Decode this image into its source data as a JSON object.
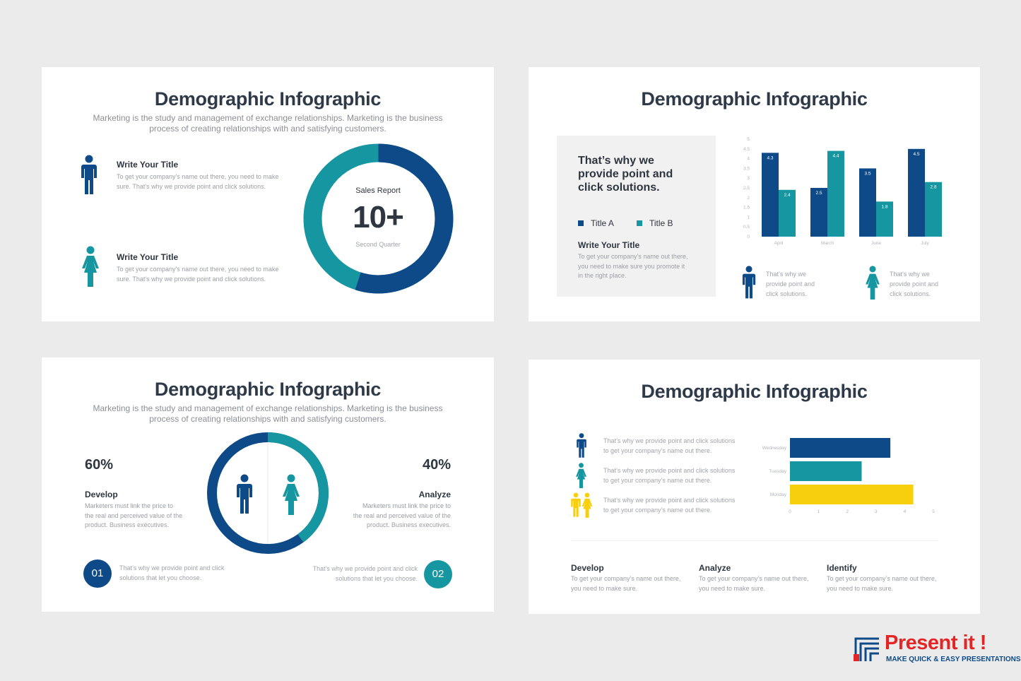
{
  "colors": {
    "navy": "#0d4a87",
    "teal": "#1696a0",
    "yellow": "#f7cf0c",
    "bg": "#ebebeb"
  },
  "slide1": {
    "title": "Demographic Infographic",
    "subtitle_line1": "Marketing is the study and management of exchange relationships. Marketing is the business",
    "subtitle_line2": "process of creating relationships with and satisfying customers.",
    "items": [
      {
        "icon": "male-icon",
        "title": "Write Your Title",
        "line1": "To get your company's name out there, you need to make",
        "line2": "sure. That's why we provide point and click solutions."
      },
      {
        "icon": "female-icon",
        "title": "Write Your Title",
        "line1": "To get your company's name out there, you need to make",
        "line2": "sure. That's why we provide point and click solutions."
      }
    ],
    "donut": {
      "label": "Sales Report",
      "value": "10+",
      "caption": "Second Quarter",
      "navy_fraction": 0.55
    }
  },
  "slide2": {
    "title": "Demographic Infographic",
    "panel_heading_l1": "That’s why we",
    "panel_heading_l2": "provide point and",
    "panel_heading_l3": "click solutions.",
    "legend": [
      "Title A",
      "Title B"
    ],
    "panel_title": "Write Your Title",
    "panel_text_l1": "To get your company’s name out there,",
    "panel_text_l2": "you need to make sure you promote it",
    "panel_text_l3": "in the right place.",
    "chart_data": {
      "type": "bar",
      "categories": [
        "April",
        "March",
        "June",
        "July"
      ],
      "series": [
        {
          "name": "Title A",
          "values": [
            4.3,
            2.5,
            3.5,
            4.5
          ],
          "color": "#0d4a87"
        },
        {
          "name": "Title B",
          "values": [
            2.4,
            4.4,
            1.8,
            2.8
          ],
          "color": "#1696a0"
        }
      ],
      "ylim": [
        0,
        5
      ],
      "yticks": [
        "0",
        "0.5",
        "1",
        "1.5",
        "2",
        "2.5",
        "3",
        "3.5",
        "4",
        "4.5",
        "5"
      ]
    },
    "notes": [
      {
        "icon": "male-icon",
        "l1": "That’s why we",
        "l2": "provide point and",
        "l3": "click solutions."
      },
      {
        "icon": "female-icon",
        "l1": "That’s why we",
        "l2": "provide point and",
        "l3": "click solutions."
      }
    ]
  },
  "slide3": {
    "title": "Demographic Infographic",
    "subtitle_line1": "Marketing is the study and management of exchange relationships. Marketing is the business",
    "subtitle_line2": "process of creating relationships with and satisfying customers.",
    "left": {
      "percent": "60%",
      "heading": "Develop",
      "l1": "Marketers must link the price to",
      "l2": "the real and perceived value of the",
      "l3": "product. Business executives."
    },
    "right": {
      "percent": "40%",
      "heading": "Analyze",
      "l1": "Marketers must link the price to",
      "l2": "the real and perceived value of the",
      "l3": "product. Business executives."
    },
    "steps": [
      {
        "num": "01",
        "l1": "That’s why we provide point and click",
        "l2": "solutions that let you choose."
      },
      {
        "num": "02",
        "l1": "That’s why we provide point and click",
        "l2": "solutions that let you choose."
      }
    ],
    "donut": {
      "navy_fraction": 0.6,
      "teal_fraction": 0.4
    }
  },
  "slide4": {
    "title": "Demographic Infographic",
    "rows": [
      {
        "icon": "male-icon",
        "l1": "That’s why we provide point and click solutions",
        "l2": "to get your company’s name out there."
      },
      {
        "icon": "female-icon",
        "l1": "That’s why we provide point and click solutions",
        "l2": "to get your company’s name out there."
      },
      {
        "icon": "couple-icon",
        "l1": "That’s why we provide point and click solutions",
        "l2": "to get your company’s name out there."
      }
    ],
    "chart_data": {
      "type": "bar",
      "orientation": "horizontal",
      "categories": [
        "Wednesday",
        "Tuesday",
        "Monday"
      ],
      "values": [
        3.5,
        2.5,
        4.3
      ],
      "colors": [
        "#0d4a87",
        "#1696a0",
        "#f7cf0c"
      ],
      "xlim": [
        0,
        5
      ],
      "xticks": [
        "0",
        "1",
        "2",
        "3",
        "4",
        "5"
      ]
    },
    "columns": [
      {
        "heading": "Develop",
        "l1": "To get your company’s name out there,",
        "l2": "you need to make sure."
      },
      {
        "heading": "Analyze",
        "l1": "To get your company’s name out there,",
        "l2": "you need to make sure."
      },
      {
        "heading": "Identify",
        "l1": "To get your company’s name out there,",
        "l2": "you need to make sure."
      }
    ]
  },
  "brand": {
    "name": "Present it !",
    "tagline": "MAKE QUICK & EASY PRESENTATIONS"
  }
}
